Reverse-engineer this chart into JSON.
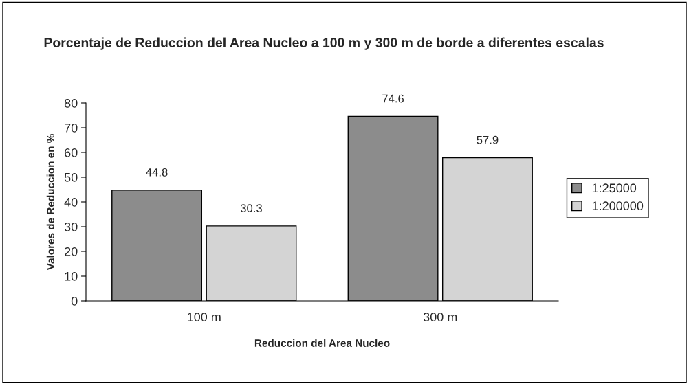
{
  "chart_data": {
    "type": "bar",
    "title": "Porcentaje de Reduccion del Area Nucleo a 100 m y 300 m de borde a diferentes escalas",
    "xlabel": "Reduccion del Area Nucleo",
    "ylabel": "Valores de Reduccion en %",
    "categories": [
      "100 m",
      "300 m"
    ],
    "series": [
      {
        "name": "1:25000",
        "color": "#8c8c8c",
        "values": [
          44.8,
          74.6
        ]
      },
      {
        "name": "1:200000",
        "color": "#d4d4d4",
        "values": [
          30.3,
          57.9
        ]
      }
    ],
    "ylim": [
      0,
      80
    ],
    "yticks": [
      0,
      10,
      20,
      30,
      40,
      50,
      60,
      70,
      80
    ],
    "grid": false,
    "legend": "right",
    "data_labels": true
  }
}
